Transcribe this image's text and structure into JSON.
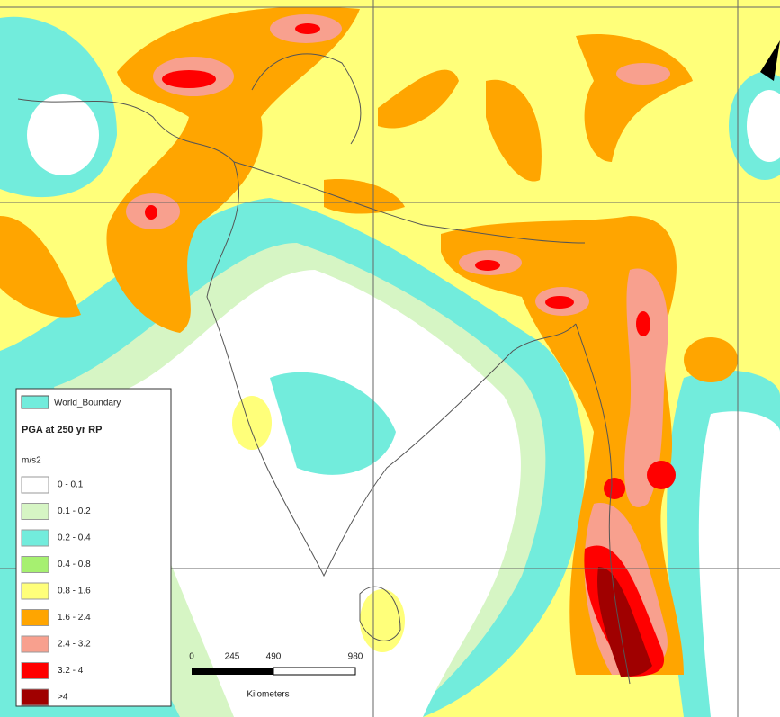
{
  "legend": {
    "boundary": "World_Boundary",
    "title": "PGA at 250 yr RP",
    "unit": "m/s2",
    "classes": [
      {
        "label": "0 - 0.1",
        "color": "#ffffff"
      },
      {
        "label": "0.1 - 0.2",
        "color": "#d6f5c4"
      },
      {
        "label": "0.2 - 0.4",
        "color": "#72ecdc"
      },
      {
        "label": "0.4 - 0.8",
        "color": "#a6f070"
      },
      {
        "label": "0.8 - 1.6",
        "color": "#ffff7a"
      },
      {
        "label": "1.6 - 2.4",
        "color": "#ffa500"
      },
      {
        "label": "2.4 - 3.2",
        "color": "#f8a08e"
      },
      {
        "label": "3.2 - 4",
        "color": "#ff0000"
      },
      {
        "label": ">4",
        "color": "#a00000"
      }
    ]
  },
  "scale_bar": {
    "ticks": [
      "0",
      "245",
      "490",
      "980"
    ],
    "unit": "Kilometers"
  }
}
